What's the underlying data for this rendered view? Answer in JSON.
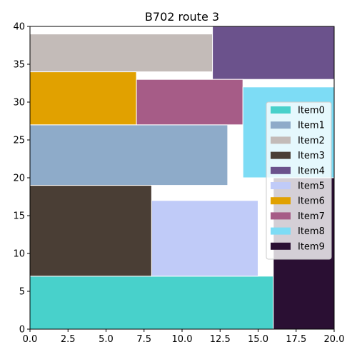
{
  "chart_data": {
    "type": "treemap",
    "title": "B702 route 3",
    "xlim": [
      0,
      20
    ],
    "ylim": [
      0,
      40
    ],
    "x_ticks": [
      "0.0",
      "2.5",
      "5.0",
      "7.5",
      "10.0",
      "12.5",
      "15.0",
      "17.5",
      "20.0"
    ],
    "y_ticks": [
      "0",
      "5",
      "10",
      "15",
      "20",
      "25",
      "30",
      "35",
      "40"
    ],
    "grid": false,
    "legend_position": "right",
    "items": [
      {
        "name": "Item0",
        "color": "#48d1cb",
        "x0": 0,
        "y0": 0,
        "x1": 16,
        "y1": 7
      },
      {
        "name": "Item1",
        "color": "#8eabc9",
        "x0": 0,
        "y0": 19,
        "x1": 13,
        "y1": 27
      },
      {
        "name": "Item2",
        "color": "#c3bbb8",
        "x0": 0,
        "y0": 34,
        "x1": 12,
        "y1": 39
      },
      {
        "name": "Item3",
        "color": "#4a3e35",
        "x0": 0,
        "y0": 7,
        "x1": 8,
        "y1": 19
      },
      {
        "name": "Item4",
        "color": "#6b528c",
        "x0": 12,
        "y0": 33,
        "x1": 20,
        "y1": 40
      },
      {
        "name": "Item5",
        "color": "#c0cbf8",
        "x0": 8,
        "y0": 7,
        "x1": 15,
        "y1": 17
      },
      {
        "name": "Item6",
        "color": "#e1a100",
        "x0": 0,
        "y0": 27,
        "x1": 7,
        "y1": 34
      },
      {
        "name": "Item7",
        "color": "#a65c87",
        "x0": 7,
        "y0": 27,
        "x1": 14,
        "y1": 33
      },
      {
        "name": "Item8",
        "color": "#7ddcf5",
        "x0": 14,
        "y0": 20,
        "x1": 20,
        "y1": 32
      },
      {
        "name": "Item9",
        "color": "#2a0f33",
        "x0": 16,
        "y0": 0,
        "x1": 20,
        "y1": 20
      }
    ]
  }
}
